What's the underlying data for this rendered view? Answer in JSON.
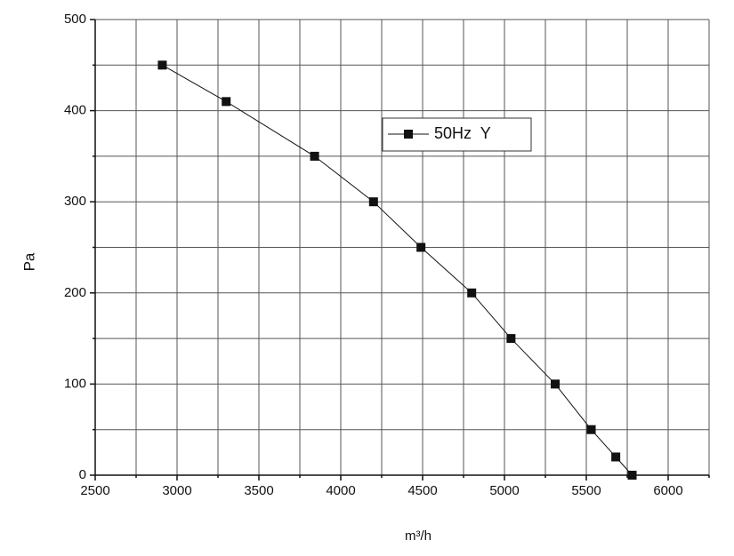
{
  "chart_data": {
    "type": "line",
    "x_label": "m³/h",
    "y_label": "Pa",
    "xlim": [
      2500,
      6250
    ],
    "xticks": [
      2500,
      3000,
      3500,
      4000,
      4500,
      5000,
      5500,
      6000
    ],
    "x_minor_ticks": [
      2750,
      3250,
      3750,
      4250,
      4750,
      5250,
      5750,
      6250
    ],
    "ylim": [
      0,
      500
    ],
    "yticks": [
      0,
      100,
      200,
      300,
      400,
      500
    ],
    "y_minor_ticks": [
      50,
      150,
      250,
      350,
      450
    ],
    "grid": true,
    "legend": "upper center",
    "series": [
      {
        "name": "50Hz  Y",
        "color": "#111111",
        "x": [
          2910,
          3300,
          3840,
          4200,
          4490,
          4800,
          5040,
          5310,
          5530,
          5680,
          5780
        ],
        "values": [
          450,
          410,
          350,
          300,
          250,
          200,
          150,
          100,
          50,
          20,
          0
        ]
      }
    ]
  }
}
